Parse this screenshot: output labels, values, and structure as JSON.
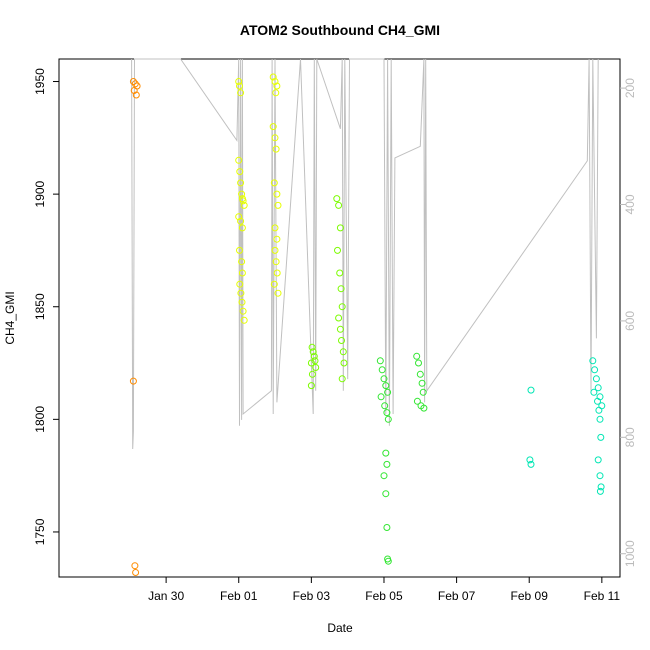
{
  "chart_data": {
    "type": "scatter",
    "title": "ATOM2 Southbound CH4_GMI",
    "xlabel": "Date",
    "ylabel": "CH4_GMI",
    "x_tick_labels": [
      "Jan 30",
      "Feb 01",
      "Feb 03",
      "Feb 05",
      "Feb 07",
      "Feb 09",
      "Feb 11"
    ],
    "x_tick_values": [
      0,
      2,
      4,
      6,
      8,
      10,
      12
    ],
    "xlim": [
      -2.95,
      12.5
    ],
    "ylim": [
      1730,
      1960
    ],
    "y_ticks": [
      1750,
      1800,
      1850,
      1900,
      1950
    ],
    "right_axis": {
      "ticks": [
        200,
        400,
        600,
        800,
        1000
      ],
      "range": [
        150,
        1040
      ],
      "inverted": true,
      "color": "#bbbbbb"
    },
    "pressure_trace": {
      "color": "#c0c0c0",
      "points": [
        [
          -0.95,
          150
        ],
        [
          -0.92,
          820
        ],
        [
          -0.9,
          790
        ],
        [
          -0.87,
          150
        ],
        [
          0.4,
          150
        ],
        [
          1.95,
          290
        ],
        [
          2.0,
          150
        ],
        [
          2.02,
          780
        ],
        [
          2.05,
          150
        ],
        [
          2.08,
          770
        ],
        [
          2.1,
          150
        ],
        [
          2.12,
          760
        ],
        [
          2.9,
          720
        ],
        [
          2.92,
          150
        ],
        [
          2.95,
          760
        ],
        [
          3.0,
          150
        ],
        [
          3.05,
          740
        ],
        [
          3.7,
          150
        ],
        [
          4.05,
          760
        ],
        [
          4.08,
          150
        ],
        [
          4.12,
          720
        ],
        [
          4.15,
          150
        ],
        [
          4.8,
          270
        ],
        [
          4.85,
          150
        ],
        [
          4.88,
          720
        ],
        [
          4.92,
          150
        ],
        [
          5.0,
          700
        ],
        [
          5.05,
          150
        ],
        [
          6.0,
          150
        ],
        [
          6.05,
          760
        ],
        [
          6.1,
          150
        ],
        [
          6.15,
          780
        ],
        [
          6.2,
          150
        ],
        [
          6.25,
          760
        ],
        [
          6.3,
          320
        ],
        [
          7.0,
          300
        ],
        [
          7.1,
          150
        ],
        [
          7.12,
          740
        ],
        [
          7.15,
          150
        ],
        [
          7.18,
          720
        ],
        [
          11.6,
          325
        ],
        [
          11.65,
          150
        ],
        [
          11.7,
          720
        ],
        [
          11.75,
          150
        ],
        [
          11.85,
          630
        ],
        [
          11.9,
          150
        ]
      ]
    },
    "series": [
      {
        "color": "#ff8c00",
        "points": [
          [
            -0.9,
            1950
          ],
          [
            -0.85,
            1949
          ],
          [
            -0.8,
            1948
          ],
          [
            -0.88,
            1946
          ],
          [
            -0.82,
            1944
          ],
          [
            -0.9,
            1817
          ],
          [
            -0.86,
            1735
          ],
          [
            -0.84,
            1732
          ]
        ]
      },
      {
        "color": "#e6ff00",
        "points": [
          [
            2.0,
            1950
          ],
          [
            2.02,
            1948
          ],
          [
            2.05,
            1945
          ],
          [
            2.0,
            1915
          ],
          [
            2.03,
            1910
          ],
          [
            2.05,
            1905
          ],
          [
            2.08,
            1900
          ],
          [
            2.1,
            1898
          ],
          [
            2.12,
            1897
          ],
          [
            2.15,
            1895
          ],
          [
            2.0,
            1890
          ],
          [
            2.05,
            1888
          ],
          [
            2.1,
            1885
          ],
          [
            2.02,
            1875
          ],
          [
            2.08,
            1870
          ],
          [
            2.1,
            1865
          ],
          [
            2.03,
            1860
          ],
          [
            2.06,
            1856
          ],
          [
            2.09,
            1852
          ],
          [
            2.12,
            1848
          ],
          [
            2.15,
            1844
          ],
          [
            2.95,
            1952
          ],
          [
            3.0,
            1950
          ],
          [
            3.05,
            1948
          ],
          [
            3.02,
            1945
          ],
          [
            2.95,
            1930
          ],
          [
            3.0,
            1925
          ],
          [
            3.03,
            1920
          ],
          [
            2.98,
            1905
          ],
          [
            3.05,
            1900
          ],
          [
            3.08,
            1895
          ],
          [
            3.0,
            1885
          ],
          [
            3.05,
            1880
          ],
          [
            3.0,
            1875
          ],
          [
            3.03,
            1870
          ],
          [
            3.06,
            1865
          ],
          [
            2.98,
            1860
          ],
          [
            3.08,
            1856
          ]
        ]
      },
      {
        "color": "#7cfc00",
        "points": [
          [
            4.02,
            1832
          ],
          [
            4.05,
            1830
          ],
          [
            4.08,
            1828
          ],
          [
            4.1,
            1826
          ],
          [
            4.0,
            1825
          ],
          [
            4.12,
            1823
          ],
          [
            4.03,
            1820
          ],
          [
            4.0,
            1815
          ],
          [
            4.7,
            1898
          ],
          [
            4.75,
            1895
          ],
          [
            4.8,
            1885
          ],
          [
            4.72,
            1875
          ],
          [
            4.78,
            1865
          ],
          [
            4.82,
            1858
          ],
          [
            4.85,
            1850
          ],
          [
            4.75,
            1845
          ],
          [
            4.8,
            1840
          ],
          [
            4.83,
            1835
          ],
          [
            4.88,
            1830
          ],
          [
            4.9,
            1825
          ],
          [
            4.85,
            1818
          ]
        ]
      },
      {
        "color": "#32e632",
        "points": [
          [
            5.9,
            1826
          ],
          [
            5.95,
            1822
          ],
          [
            6.0,
            1818
          ],
          [
            6.05,
            1815
          ],
          [
            6.1,
            1812
          ],
          [
            5.92,
            1810
          ],
          [
            6.02,
            1806
          ],
          [
            6.08,
            1803
          ],
          [
            6.12,
            1800
          ],
          [
            6.05,
            1785
          ],
          [
            6.08,
            1780
          ],
          [
            6.0,
            1775
          ],
          [
            6.05,
            1767
          ],
          [
            6.08,
            1752
          ],
          [
            6.1,
            1738
          ],
          [
            6.12,
            1737
          ],
          [
            6.9,
            1828
          ],
          [
            6.95,
            1825
          ],
          [
            7.0,
            1820
          ],
          [
            7.05,
            1816
          ],
          [
            7.08,
            1812
          ],
          [
            6.92,
            1808
          ],
          [
            7.02,
            1806
          ],
          [
            7.1,
            1805
          ]
        ]
      },
      {
        "color": "#00e6b4",
        "points": [
          [
            10.05,
            1813
          ],
          [
            10.02,
            1782
          ],
          [
            10.05,
            1780
          ],
          [
            11.75,
            1826
          ],
          [
            11.8,
            1822
          ],
          [
            11.85,
            1818
          ],
          [
            11.9,
            1814
          ],
          [
            11.95,
            1810
          ],
          [
            12.0,
            1806
          ],
          [
            11.78,
            1812
          ],
          [
            11.88,
            1808
          ],
          [
            11.92,
            1804
          ],
          [
            11.95,
            1800
          ],
          [
            11.97,
            1792
          ],
          [
            11.9,
            1782
          ],
          [
            11.95,
            1775
          ],
          [
            11.98,
            1770
          ],
          [
            11.96,
            1768
          ]
        ]
      }
    ]
  }
}
